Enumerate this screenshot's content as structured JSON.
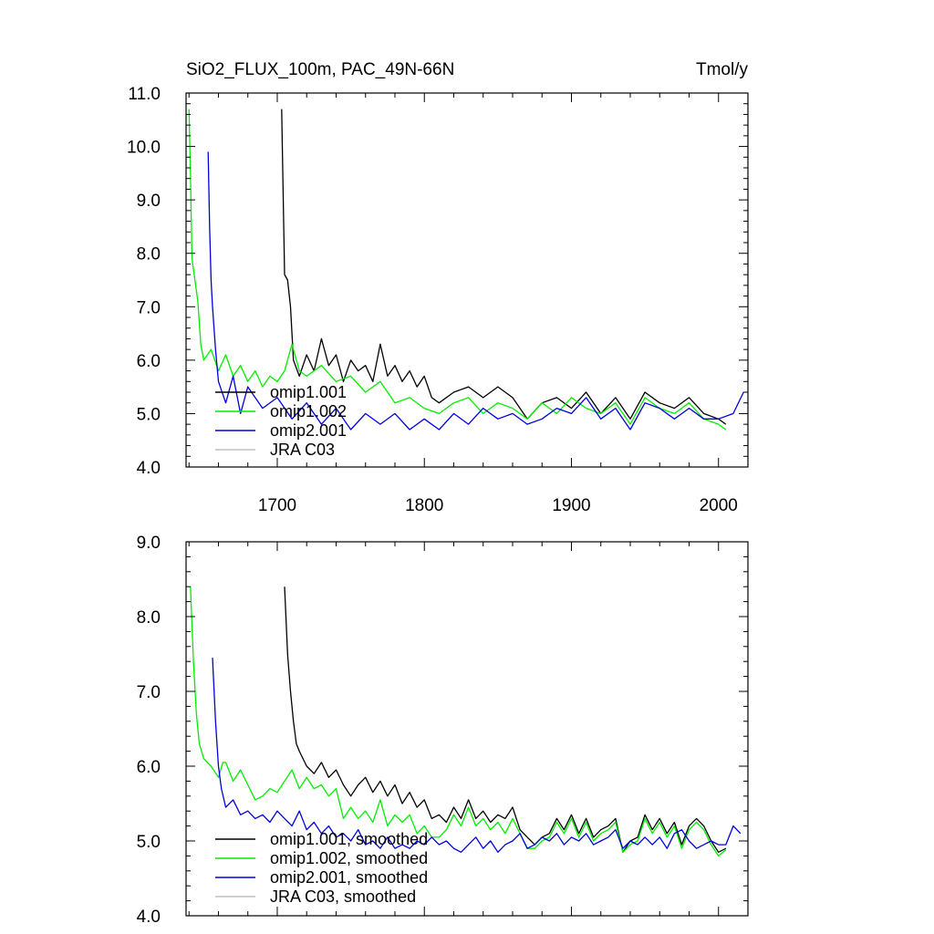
{
  "chart_data": [
    {
      "type": "line",
      "title": "SiO2_FLUX_100m, PAC_49N-66N",
      "units": "Tmol/y",
      "xlim": [
        1638,
        2020
      ],
      "ylim": [
        4.0,
        11.0
      ],
      "x_ticks": [
        1700,
        1800,
        1900,
        2000
      ],
      "x_tick_labels": [
        "1700",
        "1800",
        "1900",
        "2000"
      ],
      "y_ticks": [
        4.0,
        5.0,
        6.0,
        7.0,
        8.0,
        9.0,
        10.0,
        11.0
      ],
      "y_tick_labels": [
        "4.0",
        "5.0",
        "6.0",
        "7.0",
        "8.0",
        "9.0",
        "10.0",
        "11.0"
      ],
      "grid": false,
      "legend_position": "lower-left",
      "series": [
        {
          "name": "omip1.001",
          "color": "#000000",
          "x": [
            1703,
            1705,
            1707,
            1709,
            1711,
            1715,
            1720,
            1725,
            1730,
            1735,
            1740,
            1745,
            1750,
            1755,
            1760,
            1765,
            1770,
            1775,
            1780,
            1785,
            1790,
            1795,
            1800,
            1805,
            1810,
            1820,
            1830,
            1840,
            1850,
            1860,
            1870,
            1880,
            1890,
            1900,
            1910,
            1920,
            1930,
            1940,
            1950,
            1960,
            1970,
            1980,
            1990,
            2000,
            2005
          ],
          "y": [
            10.7,
            7.6,
            7.5,
            7.0,
            6.0,
            5.7,
            6.1,
            5.8,
            6.4,
            5.9,
            6.1,
            5.6,
            6.0,
            5.8,
            5.9,
            5.6,
            6.3,
            5.7,
            5.9,
            5.6,
            5.8,
            5.5,
            5.7,
            5.3,
            5.2,
            5.4,
            5.5,
            5.3,
            5.5,
            5.3,
            4.9,
            5.2,
            5.3,
            5.1,
            5.4,
            5.0,
            5.3,
            4.9,
            5.4,
            5.2,
            5.1,
            5.3,
            5.0,
            4.9,
            4.8
          ]
        },
        {
          "name": "omip1.002",
          "color": "#00ee00",
          "x": [
            1640,
            1641,
            1642,
            1644,
            1646,
            1648,
            1650,
            1655,
            1660,
            1665,
            1670,
            1675,
            1680,
            1685,
            1690,
            1695,
            1700,
            1705,
            1710,
            1715,
            1720,
            1730,
            1740,
            1750,
            1760,
            1770,
            1780,
            1790,
            1800,
            1810,
            1820,
            1830,
            1840,
            1850,
            1860,
            1870,
            1880,
            1890,
            1900,
            1910,
            1920,
            1930,
            1940,
            1950,
            1960,
            1970,
            1980,
            1990,
            2000,
            2005
          ],
          "y": [
            10.7,
            9.5,
            7.9,
            7.5,
            7.1,
            6.3,
            6.0,
            6.2,
            5.8,
            6.1,
            5.7,
            5.9,
            5.6,
            5.8,
            5.5,
            5.7,
            5.6,
            5.8,
            6.3,
            5.8,
            5.7,
            5.9,
            5.6,
            5.7,
            5.4,
            5.6,
            5.2,
            5.3,
            5.1,
            5.0,
            5.2,
            5.3,
            5.0,
            5.2,
            5.1,
            4.9,
            5.2,
            5.0,
            5.3,
            5.1,
            5.0,
            5.2,
            4.8,
            5.3,
            5.1,
            5.0,
            5.2,
            4.9,
            4.8,
            4.7
          ]
        },
        {
          "name": "omip2.001",
          "color": "#0000dd",
          "x": [
            1653,
            1654,
            1655,
            1656,
            1658,
            1660,
            1665,
            1670,
            1675,
            1680,
            1690,
            1700,
            1710,
            1720,
            1730,
            1740,
            1750,
            1760,
            1770,
            1780,
            1790,
            1800,
            1810,
            1820,
            1830,
            1840,
            1850,
            1860,
            1870,
            1880,
            1890,
            1900,
            1910,
            1920,
            1930,
            1940,
            1950,
            1960,
            1970,
            1980,
            1990,
            2000,
            2010,
            2017
          ],
          "y": [
            9.9,
            8.5,
            7.5,
            7.0,
            6.2,
            5.6,
            5.2,
            5.7,
            5.0,
            5.5,
            5.1,
            5.3,
            4.9,
            5.2,
            4.8,
            5.1,
            4.7,
            5.0,
            4.8,
            5.0,
            4.7,
            4.9,
            4.7,
            5.0,
            4.8,
            5.1,
            4.9,
            5.0,
            4.8,
            4.9,
            5.1,
            5.0,
            5.3,
            4.9,
            5.1,
            4.7,
            5.2,
            5.1,
            4.9,
            5.1,
            4.9,
            4.9,
            5.0,
            5.4
          ]
        },
        {
          "name": "JRA C03",
          "color": "#c0c0c0",
          "x": [],
          "y": []
        }
      ]
    },
    {
      "type": "line",
      "title": "",
      "xlim": [
        1638,
        2020
      ],
      "ylim": [
        4.0,
        9.0
      ],
      "x_ticks": [
        1700,
        1800,
        1900,
        2000
      ],
      "x_tick_labels": [],
      "y_ticks": [
        4.0,
        5.0,
        6.0,
        7.0,
        8.0,
        9.0
      ],
      "y_tick_labels": [
        "4.0",
        "5.0",
        "6.0",
        "7.0",
        "8.0",
        "9.0"
      ],
      "grid": false,
      "legend_position": "lower-left",
      "series": [
        {
          "name": "omip1.001, smoothed",
          "color": "#000000",
          "x": [
            1705,
            1707,
            1709,
            1711,
            1713,
            1715,
            1720,
            1725,
            1730,
            1735,
            1740,
            1745,
            1750,
            1755,
            1760,
            1765,
            1770,
            1775,
            1780,
            1785,
            1790,
            1795,
            1800,
            1805,
            1810,
            1815,
            1820,
            1825,
            1830,
            1835,
            1840,
            1845,
            1850,
            1855,
            1860,
            1865,
            1870,
            1875,
            1880,
            1885,
            1890,
            1895,
            1900,
            1905,
            1910,
            1915,
            1920,
            1925,
            1930,
            1935,
            1940,
            1945,
            1950,
            1955,
            1960,
            1965,
            1970,
            1975,
            1980,
            1985,
            1990,
            1995,
            2000,
            2005
          ],
          "y": [
            8.4,
            7.5,
            7.0,
            6.6,
            6.3,
            6.2,
            6.0,
            5.9,
            6.05,
            5.85,
            5.95,
            5.75,
            5.6,
            5.75,
            5.85,
            5.65,
            5.8,
            5.6,
            5.75,
            5.5,
            5.65,
            5.45,
            5.55,
            5.3,
            5.35,
            5.25,
            5.45,
            5.3,
            5.55,
            5.3,
            5.4,
            5.25,
            5.35,
            5.3,
            5.45,
            5.15,
            5.05,
            4.95,
            5.05,
            5.1,
            5.3,
            5.15,
            5.35,
            5.1,
            5.3,
            5.05,
            5.15,
            5.2,
            5.3,
            4.85,
            5.0,
            5.05,
            5.35,
            5.15,
            5.3,
            5.1,
            5.25,
            4.95,
            5.2,
            5.3,
            5.2,
            5.0,
            4.85,
            4.9
          ]
        },
        {
          "name": "omip1.002, smoothed",
          "color": "#00ee00",
          "x": [
            1641,
            1643,
            1645,
            1647,
            1650,
            1655,
            1660,
            1663,
            1665,
            1670,
            1675,
            1680,
            1685,
            1690,
            1695,
            1700,
            1705,
            1710,
            1715,
            1720,
            1725,
            1730,
            1735,
            1740,
            1745,
            1750,
            1755,
            1760,
            1765,
            1770,
            1775,
            1780,
            1785,
            1790,
            1795,
            1800,
            1805,
            1810,
            1815,
            1820,
            1825,
            1830,
            1835,
            1840,
            1845,
            1850,
            1855,
            1860,
            1865,
            1870,
            1875,
            1880,
            1885,
            1890,
            1895,
            1900,
            1905,
            1910,
            1915,
            1920,
            1925,
            1930,
            1935,
            1940,
            1945,
            1950,
            1955,
            1960,
            1965,
            1970,
            1975,
            1980,
            1985,
            1990,
            1995,
            2000,
            2005
          ],
          "y": [
            8.4,
            7.4,
            6.7,
            6.3,
            6.1,
            6.0,
            5.85,
            6.05,
            6.05,
            5.8,
            5.95,
            5.75,
            5.55,
            5.6,
            5.7,
            5.65,
            5.8,
            5.95,
            5.7,
            5.85,
            5.7,
            5.75,
            5.6,
            5.7,
            5.3,
            5.45,
            5.3,
            5.4,
            5.25,
            5.55,
            5.2,
            5.35,
            5.25,
            5.35,
            5.1,
            5.2,
            5.05,
            5.05,
            5.15,
            5.35,
            5.2,
            5.45,
            5.2,
            5.3,
            5.15,
            5.25,
            5.1,
            5.3,
            5.1,
            4.9,
            4.9,
            5.0,
            5.05,
            5.25,
            5.1,
            5.3,
            5.05,
            5.25,
            5.0,
            5.1,
            5.15,
            5.25,
            4.85,
            4.95,
            5.0,
            5.3,
            5.1,
            5.25,
            5.05,
            5.2,
            4.9,
            5.15,
            5.25,
            5.15,
            4.95,
            4.8,
            4.88
          ]
        },
        {
          "name": "omip2.001, smoothed",
          "color": "#0000dd",
          "x": [
            1656,
            1658,
            1660,
            1662,
            1665,
            1670,
            1675,
            1680,
            1685,
            1690,
            1695,
            1700,
            1705,
            1710,
            1715,
            1720,
            1725,
            1730,
            1735,
            1740,
            1745,
            1750,
            1755,
            1760,
            1765,
            1770,
            1775,
            1780,
            1785,
            1790,
            1795,
            1800,
            1805,
            1810,
            1815,
            1820,
            1825,
            1830,
            1835,
            1840,
            1845,
            1850,
            1855,
            1860,
            1865,
            1870,
            1875,
            1880,
            1885,
            1890,
            1895,
            1900,
            1905,
            1910,
            1915,
            1920,
            1925,
            1930,
            1935,
            1940,
            1945,
            1950,
            1955,
            1960,
            1965,
            1970,
            1975,
            1980,
            1985,
            1990,
            1995,
            2000,
            2005,
            2010,
            2015
          ],
          "y": [
            7.45,
            6.6,
            6.0,
            5.7,
            5.45,
            5.55,
            5.35,
            5.4,
            5.3,
            5.35,
            5.25,
            5.4,
            5.3,
            5.2,
            5.4,
            5.15,
            5.25,
            5.1,
            5.2,
            5.05,
            5.1,
            5.0,
            5.15,
            4.95,
            5.0,
            4.9,
            5.05,
            4.9,
            4.95,
            4.9,
            5.0,
            4.95,
            5.05,
            4.95,
            5.0,
            4.9,
            4.85,
            4.95,
            5.05,
            4.9,
            5.0,
            4.85,
            4.95,
            5.0,
            5.1,
            4.9,
            4.95,
            5.05,
            5.0,
            5.1,
            4.95,
            5.05,
            5.0,
            5.1,
            4.95,
            5.0,
            5.05,
            5.15,
            4.9,
            5.0,
            4.95,
            5.05,
            4.95,
            5.05,
            4.9,
            5.1,
            5.15,
            5.0,
            4.9,
            4.95,
            5.0,
            4.95,
            4.95,
            5.2,
            5.1
          ]
        },
        {
          "name": "JRA C03, smoothed",
          "color": "#c0c0c0",
          "x": [],
          "y": []
        }
      ]
    }
  ]
}
